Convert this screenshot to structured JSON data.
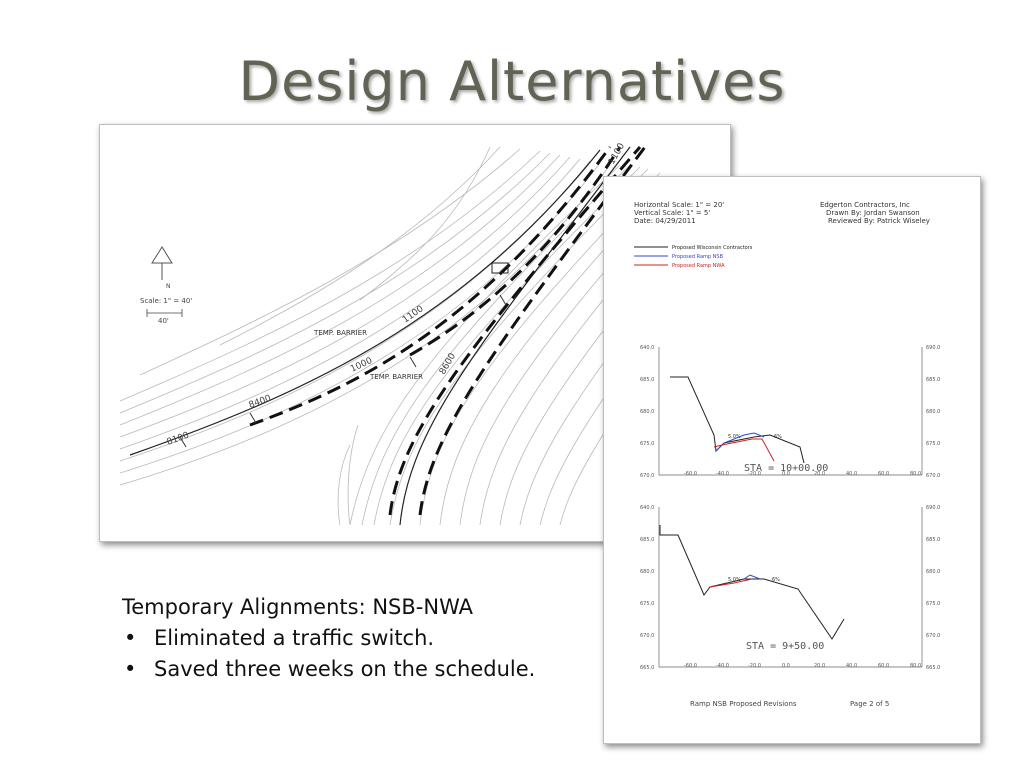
{
  "slide": {
    "title": "Design Alternatives"
  },
  "plan_sheet": {
    "north_label": "N",
    "scale_label": "Scale: 1\" = 40'",
    "scale_bar_label": "40'",
    "barrier_labels": [
      "TEMP. BARRIER",
      "TEMP. BARRIER"
    ],
    "stations": [
      "8400",
      "8100",
      "1000",
      "1100",
      "8600",
      "1100"
    ]
  },
  "profile_sheet": {
    "header_left": [
      "Horizontal Scale: 1\" = 20'",
      "Vertical Scale: 1\" = 5'",
      "Date: 04/29/2011"
    ],
    "header_right": [
      "Edgerton Contractors, Inc",
      "Drawn By: Jordan Swanson",
      "Reviewed By: Patrick Wiseley"
    ],
    "legend": [
      {
        "label": "Proposed Wisconsin Contractors",
        "color": "#222222"
      },
      {
        "label": "Proposed Ramp NSB",
        "color": "#3344cc"
      },
      {
        "label": "Proposed Ramp NWA",
        "color": "#cc2222"
      }
    ],
    "sections": [
      {
        "station_label": "STA = 10+00.00",
        "y_left": [
          "640.0",
          "685.0",
          "680.0",
          "675.0",
          "670.0"
        ],
        "y_right": [
          "690.0",
          "685.0",
          "680.0",
          "675.0",
          "670.0"
        ],
        "x_ticks": [
          "-60.0",
          "-40.0",
          "-20.0",
          "0.0",
          "20.0",
          "40.0",
          "60.0",
          "80.0"
        ],
        "slope_labels": [
          "5.0%",
          "6%"
        ]
      },
      {
        "station_label": "STA = 9+50.00",
        "y_left": [
          "640.0",
          "685.0",
          "680.0",
          "675.0",
          "670.0",
          "665.0"
        ],
        "y_right": [
          "690.0",
          "685.0",
          "680.0",
          "675.0",
          "670.0",
          "665.0"
        ],
        "x_ticks": [
          "-60.0",
          "-40.0",
          "-20.0",
          "0.0",
          "20.0",
          "40.0",
          "60.0",
          "80.0"
        ],
        "slope_labels": [
          "5.0%",
          "6%"
        ]
      }
    ],
    "footer_left": "Ramp NSB Proposed Revisions",
    "footer_right": "Page 2 of 5"
  },
  "notes": {
    "heading": "Temporary Alignments:  NSB-NWA",
    "items": [
      "Eliminated a traffic switch.",
      "Saved three weeks on the schedule."
    ]
  }
}
